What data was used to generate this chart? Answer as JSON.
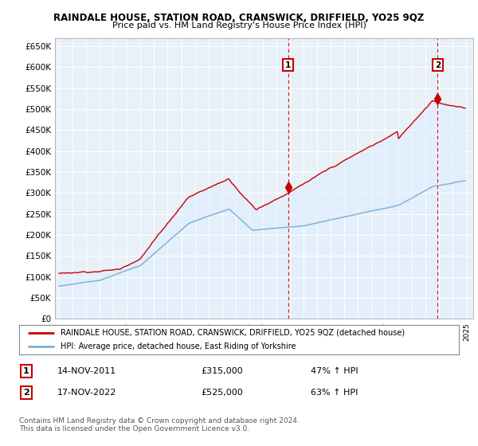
{
  "title1": "RAINDALE HOUSE, STATION ROAD, CRANSWICK, DRIFFIELD, YO25 9QZ",
  "title2": "Price paid vs. HM Land Registry's House Price Index (HPI)",
  "ylabel_ticks": [
    "£0",
    "£50K",
    "£100K",
    "£150K",
    "£200K",
    "£250K",
    "£300K",
    "£350K",
    "£400K",
    "£450K",
    "£500K",
    "£550K",
    "£600K",
    "£650K"
  ],
  "ytick_values": [
    0,
    50000,
    100000,
    150000,
    200000,
    250000,
    300000,
    350000,
    400000,
    450000,
    500000,
    550000,
    600000,
    650000
  ],
  "ylim": [
    0,
    670000
  ],
  "xlim_start": 1994.7,
  "xlim_end": 2025.5,
  "red_color": "#cc0000",
  "blue_color": "#7bafd4",
  "blue_fill": "#ddeeff",
  "dashed_red": "#cc0000",
  "sale1_year": 2011.87,
  "sale1_price": 315000,
  "sale2_year": 2022.88,
  "sale2_price": 525000,
  "legend_line1": "RAINDALE HOUSE, STATION ROAD, CRANSWICK, DRIFFIELD, YO25 9QZ (detached house)",
  "legend_line2": "HPI: Average price, detached house, East Riding of Yorkshire",
  "sale1_date": "14-NOV-2011",
  "sale1_price_str": "£315,000",
  "sale1_pct": "47% ↑ HPI",
  "sale2_date": "17-NOV-2022",
  "sale2_price_str": "£525,000",
  "sale2_pct": "63% ↑ HPI",
  "footnote": "Contains HM Land Registry data © Crown copyright and database right 2024.\nThis data is licensed under the Open Government Licence v3.0.",
  "background_color": "#ffffff",
  "chart_bg": "#e8f0f8",
  "grid_color": "#ffffff"
}
